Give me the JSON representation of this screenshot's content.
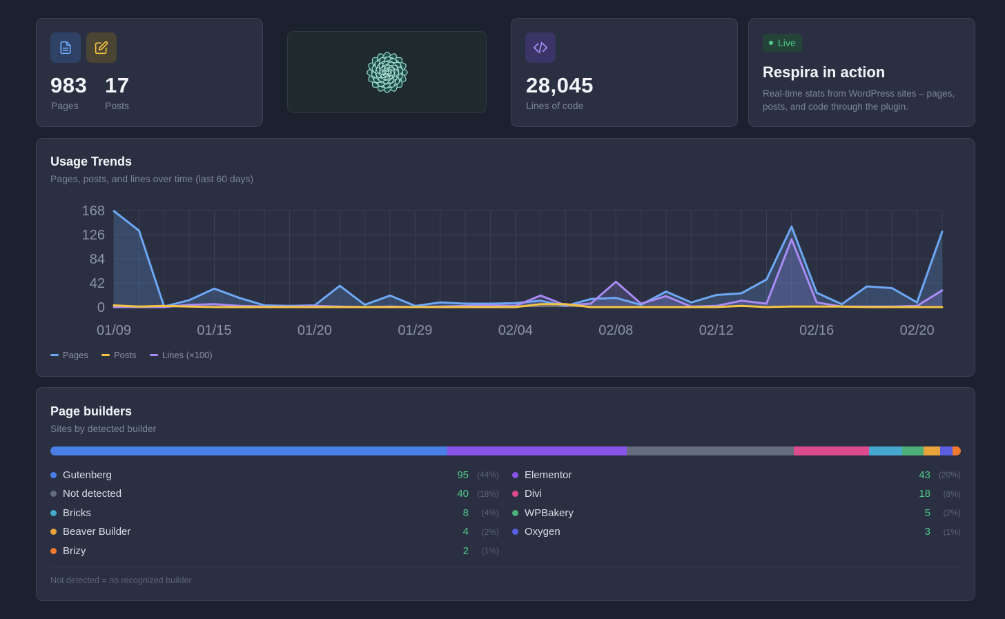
{
  "stats": {
    "pages_value": "983",
    "pages_label": "Pages",
    "posts_value": "17",
    "posts_label": "Posts",
    "lines_value": "28,045",
    "lines_label": "Lines of code"
  },
  "live_card": {
    "badge": "Live",
    "title": "Respira in action",
    "description": "Real-time stats from WordPress sites – pages, posts, and code through the plugin."
  },
  "trends": {
    "title": "Usage Trends",
    "subtitle": "Pages, posts, and lines over time (last 60 days)",
    "legend": [
      "Pages",
      "Posts",
      "Lines (×100)"
    ],
    "colors": {
      "pages": "#6ea8f5",
      "posts": "#f5c542",
      "lines": "#a98bf5"
    }
  },
  "chart_data": {
    "type": "line",
    "title": "Usage Trends",
    "ylim": [
      0,
      168
    ],
    "yticks": [
      "168",
      "126",
      "84",
      "42",
      "0"
    ],
    "xtick_labels": [
      "01/09",
      "01/15",
      "01/20",
      "01/29",
      "02/04",
      "02/08",
      "02/12",
      "02/16",
      "02/20"
    ],
    "xtick_index": [
      0,
      4,
      8,
      12,
      16,
      20,
      24,
      28,
      32
    ],
    "x": [
      "01/09",
      "01/10",
      "01/11",
      "01/13",
      "01/15",
      "01/16",
      "01/17",
      "01/18",
      "01/20",
      "01/22",
      "01/23",
      "01/27",
      "01/29",
      "01/30",
      "01/31",
      "02/01",
      "02/04",
      "02/05",
      "02/06",
      "02/07",
      "02/08",
      "02/09",
      "02/10",
      "02/11",
      "02/12",
      "02/13",
      "02/14",
      "02/15",
      "02/16",
      "02/17",
      "02/18",
      "02/19",
      "02/20",
      "02/21"
    ],
    "series": [
      {
        "name": "Pages",
        "values": [
          167,
          133,
          1,
          12,
          32,
          16,
          3,
          2,
          3,
          37,
          4,
          20,
          2,
          8,
          6,
          6,
          7,
          11,
          2,
          14,
          16,
          4,
          27,
          8,
          21,
          24,
          48,
          140,
          25,
          5,
          36,
          33,
          8,
          131
        ]
      },
      {
        "name": "Posts",
        "values": [
          3,
          1,
          2,
          1,
          0,
          0,
          0,
          0,
          0,
          0,
          0,
          0,
          0,
          0,
          0,
          0,
          0,
          5,
          5,
          0,
          0,
          0,
          0,
          0,
          0,
          2,
          0,
          1,
          1,
          1,
          0,
          0,
          0,
          0
        ]
      },
      {
        "name": "Lines (×100)",
        "values": [
          0,
          0,
          0,
          4,
          5,
          2,
          1,
          1,
          2,
          1,
          0,
          1,
          0,
          1,
          2,
          3,
          2,
          20,
          3,
          6,
          44,
          6,
          19,
          1,
          2,
          11,
          6,
          118,
          8,
          1,
          1,
          1,
          2,
          29
        ]
      }
    ]
  },
  "builders": {
    "title": "Page builders",
    "subtitle": "Sites by detected builder",
    "footnote": "Not detected = no recognized builder",
    "items": [
      {
        "name": "Gutenberg",
        "count": "95",
        "pct": "(44%)",
        "value": 95,
        "color": "#4a7fe8"
      },
      {
        "name": "Elementor",
        "count": "43",
        "pct": "(20%)",
        "value": 43,
        "color": "#8855e8"
      },
      {
        "name": "Not detected",
        "count": "40",
        "pct": "(18%)",
        "value": 40,
        "color": "#656c80"
      },
      {
        "name": "Divi",
        "count": "18",
        "pct": "(8%)",
        "value": 18,
        "color": "#dd4b8f"
      },
      {
        "name": "Bricks",
        "count": "8",
        "pct": "(4%)",
        "value": 8,
        "color": "#45a9cf"
      },
      {
        "name": "WPBakery",
        "count": "5",
        "pct": "(2%)",
        "value": 5,
        "color": "#4caf78"
      },
      {
        "name": "Beaver Builder",
        "count": "4",
        "pct": "(2%)",
        "value": 4,
        "color": "#e8a33a"
      },
      {
        "name": "Oxygen",
        "count": "3",
        "pct": "(1%)",
        "value": 3,
        "color": "#5a5ee0"
      },
      {
        "name": "Brizy",
        "count": "2",
        "pct": "(1%)",
        "value": 2,
        "color": "#ef7a2f"
      }
    ]
  }
}
